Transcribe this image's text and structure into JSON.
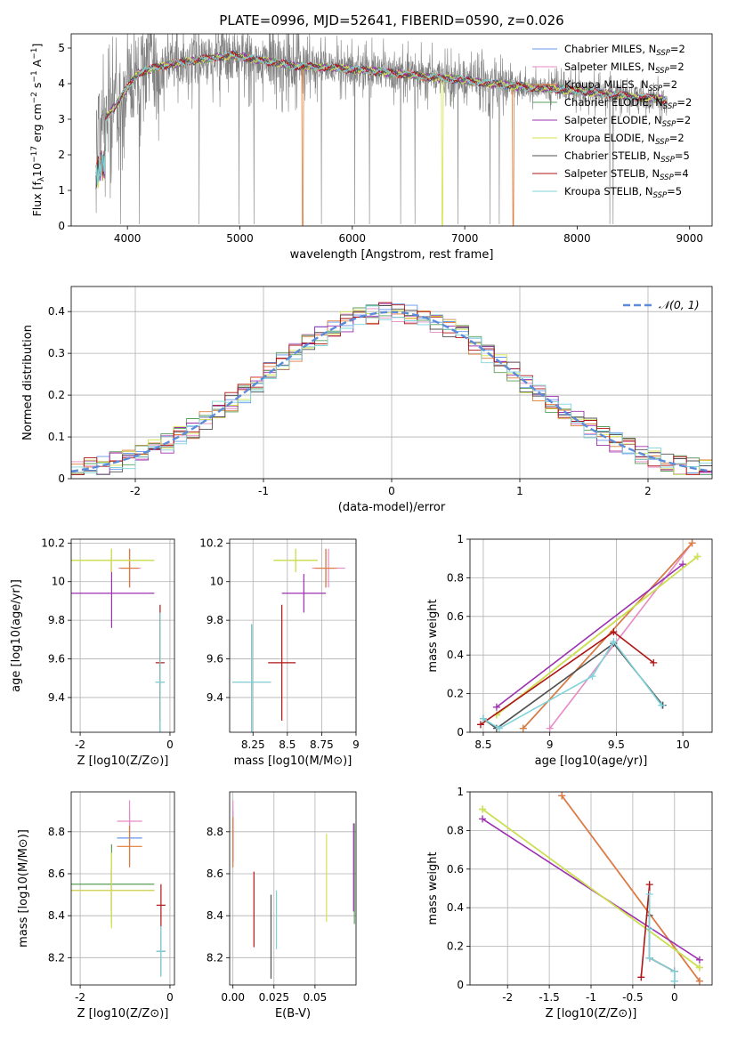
{
  "figure_title": "PLATE=0996, MJD=52641, FIBERID=0590, z=0.026",
  "palette": [
    "#6495ED",
    "#E78AC3",
    "#E07B39",
    "#5A9E5A",
    "#9B30B0",
    "#D4E34A",
    "#505050",
    "#B01515",
    "#7FD4DA"
  ],
  "chart_data": [
    {
      "id": "spectrum",
      "type": "line",
      "title": "PLATE=0996, MJD=52641, FIBERID=0590, z=0.026",
      "xlabel": "wavelength [Angstrom, rest frame]",
      "ylabel": "Flux [f_λ 10^-17 erg cm^-2 s^-1 A^-1]",
      "xlim": [
        3500,
        9200
      ],
      "ylim": [
        0,
        5.4
      ],
      "xticks": [
        4000,
        5000,
        6000,
        7000,
        8000,
        9000
      ],
      "yticks": [
        0,
        1,
        2,
        3,
        4,
        5
      ],
      "grid": false,
      "legend_position": "top-right",
      "legend": [
        {
          "label": "Chabrier MILES, N",
          "sub": "SSP",
          "tail": "=2",
          "color": "#6495ED"
        },
        {
          "label": "Salpeter MILES, N",
          "sub": "SSP",
          "tail": "=2",
          "color": "#E78AC3"
        },
        {
          "label": "Kroupa MILES, N",
          "sub": "SSP",
          "tail": "=2",
          "color": "#E07B39"
        },
        {
          "label": "Chabrier ELODIE, N",
          "sub": "SSP",
          "tail": "=2",
          "color": "#5A9E5A"
        },
        {
          "label": "Salpeter ELODIE, N",
          "sub": "SSP",
          "tail": "=2",
          "color": "#9B30B0"
        },
        {
          "label": "Kroupa ELODIE, N",
          "sub": "SSP",
          "tail": "=2",
          "color": "#D4E34A"
        },
        {
          "label": "Chabrier STELIB, N",
          "sub": "SSP",
          "tail": "=5",
          "color": "#505050"
        },
        {
          "label": "Salpeter STELIB, N",
          "sub": "SSP",
          "tail": "=4",
          "color": "#B01515"
        },
        {
          "label": "Kroupa STELIB, N",
          "sub": "SSP",
          "tail": "=5",
          "color": "#7FD4DA"
        }
      ],
      "data_color": "#808080",
      "continuum": [
        [
          3720,
          2.6
        ],
        [
          3800,
          3.0
        ],
        [
          3900,
          3.4
        ],
        [
          4000,
          3.9
        ],
        [
          4100,
          4.3
        ],
        [
          4250,
          4.45
        ],
        [
          4400,
          4.55
        ],
        [
          4600,
          4.65
        ],
        [
          4800,
          4.75
        ],
        [
          4950,
          4.8
        ],
        [
          5100,
          4.7
        ],
        [
          5300,
          4.6
        ],
        [
          5500,
          4.5
        ],
        [
          5800,
          4.45
        ],
        [
          6000,
          4.4
        ],
        [
          6200,
          4.35
        ],
        [
          6500,
          4.25
        ],
        [
          6800,
          4.15
        ],
        [
          7000,
          4.1
        ],
        [
          7200,
          4.0
        ],
        [
          7400,
          3.95
        ],
        [
          7600,
          3.9
        ],
        [
          7800,
          3.85
        ],
        [
          8000,
          3.8
        ],
        [
          8300,
          3.7
        ],
        [
          8600,
          3.6
        ],
        [
          8800,
          3.55
        ]
      ],
      "model_dips": [
        {
          "x": 5560,
          "color": "#E07B39"
        },
        {
          "x": 6800,
          "color": "#D4E34A"
        },
        {
          "x": 7430,
          "color": "#E07B39"
        }
      ]
    },
    {
      "id": "residuals",
      "type": "line",
      "xlabel": "(data-model)/error",
      "ylabel": "Normed distribution",
      "xlim": [
        -2.5,
        2.5
      ],
      "ylim": [
        0,
        0.46
      ],
      "xticks": [
        -2,
        -1,
        0,
        1,
        2
      ],
      "yticks": [
        0.0,
        0.1,
        0.2,
        0.3,
        0.4
      ],
      "grid": true,
      "legend_position": "top-right",
      "legend": [
        {
          "label": "𝒩(0, 1)",
          "style": "dashed",
          "color": "#5B8BD9"
        }
      ],
      "hist_bin_width": 0.1
    },
    {
      "id": "age-vs-Z",
      "type": "scatter",
      "xlabel": "Z [log10(Z/Z⊙)]",
      "ylabel": "age  [log10(age/yr)]",
      "xlim": [
        -2.2,
        0.1
      ],
      "ylim": [
        9.22,
        10.22
      ],
      "xticks": [
        -2,
        0
      ],
      "yticks": [
        9.4,
        9.6,
        9.8,
        10.0,
        10.2
      ],
      "grid": true,
      "points": [
        {
          "x": -0.9,
          "xerr": 0.2,
          "y": 10.07,
          "yerr": 0.1,
          "color": "#6495ED"
        },
        {
          "x": -0.9,
          "xerr": 0.25,
          "y": 10.07,
          "yerr": 0.1,
          "color": "#E78AC3"
        },
        {
          "x": -0.9,
          "xerr": 0.2,
          "y": 10.07,
          "yerr": 0.1,
          "color": "#E07B39"
        },
        {
          "x": -1.3,
          "xerr": 0.95,
          "y": 10.11,
          "yerr": 0.06,
          "color": "#5A9E5A"
        },
        {
          "x": -1.3,
          "xerr": 0.95,
          "y": 9.94,
          "yerr": 0.18,
          "color": "#9B30B0"
        },
        {
          "x": -1.3,
          "xerr": 0.95,
          "y": 10.11,
          "yerr": 0.06,
          "color": "#D4E34A"
        },
        {
          "x": -0.22,
          "xerr": 0.1,
          "y": 9.48,
          "yerr": 0.36,
          "color": "#505050"
        },
        {
          "x": -0.22,
          "xerr": 0.1,
          "y": 9.58,
          "yerr": 0.3,
          "color": "#B01515"
        },
        {
          "x": -0.22,
          "xerr": 0.1,
          "y": 9.48,
          "yerr": 0.36,
          "color": "#7FD4DA"
        }
      ]
    },
    {
      "id": "age-vs-mass",
      "type": "scatter",
      "xlabel": "mass [log10(M/M⊙)]",
      "ylabel": "",
      "xlim": [
        8.08,
        9.0
      ],
      "ylim": [
        9.22,
        10.22
      ],
      "xticks": [
        8.25,
        8.5,
        8.75,
        9.0
      ],
      "yticks": [
        9.4,
        9.6,
        9.8,
        10.0,
        10.2
      ],
      "grid": true,
      "points": [
        {
          "x": 8.78,
          "xerr": 0.06,
          "y": 10.07,
          "yerr": 0.1,
          "color": "#6495ED"
        },
        {
          "x": 8.8,
          "xerr": 0.12,
          "y": 10.07,
          "yerr": 0.1,
          "color": "#E78AC3"
        },
        {
          "x": 8.78,
          "xerr": 0.08,
          "y": 10.07,
          "yerr": 0.1,
          "color": "#E07B39"
        },
        {
          "x": 8.56,
          "xerr": 0.16,
          "y": 10.11,
          "yerr": 0.06,
          "color": "#5A9E5A"
        },
        {
          "x": 8.62,
          "xerr": 0.16,
          "y": 9.94,
          "yerr": 0.1,
          "color": "#9B30B0"
        },
        {
          "x": 8.56,
          "xerr": 0.16,
          "y": 10.11,
          "yerr": 0.06,
          "color": "#D4E34A"
        },
        {
          "x": 8.24,
          "xerr": 0.14,
          "y": 9.48,
          "yerr": 0.3,
          "color": "#505050"
        },
        {
          "x": 8.46,
          "xerr": 0.1,
          "y": 9.58,
          "yerr": 0.3,
          "color": "#B01515"
        },
        {
          "x": 8.24,
          "xerr": 0.14,
          "y": 9.48,
          "yerr": 0.3,
          "color": "#7FD4DA"
        }
      ]
    },
    {
      "id": "weight-vs-age",
      "type": "line",
      "xlabel": "age  [log10(age/yr)]",
      "ylabel": "mass weight",
      "xlim": [
        8.4,
        10.22
      ],
      "ylim": [
        0,
        1
      ],
      "xticks": [
        8.5,
        9.0,
        9.5,
        10.0
      ],
      "yticks": [
        0.0,
        0.2,
        0.4,
        0.6,
        0.8,
        1.0
      ],
      "grid": true,
      "series": [
        {
          "x": [
            8.8,
            10.07
          ],
          "y": [
            0.02,
            0.98
          ],
          "color": "#6495ED"
        },
        {
          "x": [
            9.0,
            10.07
          ],
          "y": [
            0.02,
            0.98
          ],
          "color": "#E78AC3"
        },
        {
          "x": [
            8.8,
            10.07
          ],
          "y": [
            0.02,
            0.98
          ],
          "color": "#E07B39"
        },
        {
          "x": [
            8.6,
            10.11
          ],
          "y": [
            0.09,
            0.91
          ],
          "color": "#5A9E5A"
        },
        {
          "x": [
            8.6,
            10.0
          ],
          "y": [
            0.13,
            0.87
          ],
          "color": "#9B30B0"
        },
        {
          "x": [
            8.6,
            10.11
          ],
          "y": [
            0.09,
            0.91
          ],
          "color": "#D4E34A"
        },
        {
          "x": [
            8.5,
            8.6,
            9.48,
            9.85
          ],
          "y": [
            0.07,
            0.02,
            0.46,
            0.14
          ],
          "color": "#505050"
        },
        {
          "x": [
            8.48,
            9.48,
            9.78
          ],
          "y": [
            0.04,
            0.52,
            0.36
          ],
          "color": "#B01515"
        },
        {
          "x": [
            8.5,
            8.62,
            9.32,
            9.48,
            9.84
          ],
          "y": [
            0.07,
            0.02,
            0.29,
            0.47,
            0.14
          ],
          "color": "#7FD4DA"
        }
      ]
    },
    {
      "id": "mass-vs-Z",
      "type": "scatter",
      "xlabel": "Z [log10(Z/Z⊙)]",
      "ylabel": "mass [log10(M/M⊙)]",
      "xlim": [
        -2.2,
        0.1
      ],
      "ylim": [
        8.07,
        8.99
      ],
      "xticks": [
        -2,
        0
      ],
      "yticks": [
        8.2,
        8.4,
        8.6,
        8.8
      ],
      "grid": true,
      "points": [
        {
          "x": -0.9,
          "xerr": 0.28,
          "y": 8.77,
          "yerr": 0.13,
          "color": "#6495ED"
        },
        {
          "x": -0.9,
          "xerr": 0.28,
          "y": 8.85,
          "yerr": 0.1,
          "color": "#E78AC3"
        },
        {
          "x": -0.9,
          "xerr": 0.28,
          "y": 8.73,
          "yerr": 0.1,
          "color": "#E07B39"
        },
        {
          "x": -1.3,
          "xerr": 0.95,
          "y": 8.55,
          "yerr": 0.19,
          "color": "#5A9E5A"
        },
        {
          "x": -1.3,
          "xerr": 0.95,
          "y": 8.52,
          "yerr": 0.1,
          "color": "#9B30B0"
        },
        {
          "x": -1.3,
          "xerr": 0.95,
          "y": 8.52,
          "yerr": 0.18,
          "color": "#D4E34A"
        },
        {
          "x": -0.2,
          "xerr": 0.1,
          "y": 8.23,
          "yerr": 0.12,
          "color": "#505050"
        },
        {
          "x": -0.2,
          "xerr": 0.1,
          "y": 8.45,
          "yerr": 0.1,
          "color": "#B01515"
        },
        {
          "x": -0.2,
          "xerr": 0.1,
          "y": 8.23,
          "yerr": 0.12,
          "color": "#7FD4DA"
        }
      ]
    },
    {
      "id": "mass-vs-EBV",
      "type": "scatter",
      "xlabel": "E(B-V)",
      "ylabel": "",
      "xlim": [
        -0.002,
        0.075
      ],
      "ylim": [
        8.07,
        8.99
      ],
      "xticks": [
        0.0,
        0.025,
        0.05
      ],
      "xtick_labels": [
        "0.00",
        "0.025",
        "0.05"
      ],
      "yticks": [
        8.2,
        8.4,
        8.6,
        8.8
      ],
      "grid": true,
      "points": [
        {
          "x": 0.0,
          "y": 8.78,
          "yerr": 0.12,
          "color": "#6495ED"
        },
        {
          "x": 0.0,
          "y": 8.8,
          "yerr": 0.15,
          "color": "#E78AC3"
        },
        {
          "x": 0.0,
          "y": 8.75,
          "yerr": 0.12,
          "color": "#E07B39"
        },
        {
          "x": 0.074,
          "y": 8.6,
          "yerr": 0.24,
          "color": "#5A9E5A"
        },
        {
          "x": 0.0735,
          "y": 8.63,
          "yerr": 0.21,
          "color": "#9B30B0"
        },
        {
          "x": 0.057,
          "y": 8.58,
          "yerr": 0.21,
          "color": "#D4E34A"
        },
        {
          "x": 0.0232,
          "y": 8.3,
          "yerr": 0.2,
          "color": "#505050"
        },
        {
          "x": 0.0128,
          "y": 8.43,
          "yerr": 0.18,
          "color": "#B01515"
        },
        {
          "x": 0.0265,
          "y": 8.38,
          "yerr": 0.14,
          "color": "#7FD4DA"
        }
      ]
    },
    {
      "id": "weight-vs-Z",
      "type": "line",
      "xlabel": "Z [log10(Z/Z⊙)]",
      "ylabel": "mass weight",
      "xlim": [
        -2.45,
        0.45
      ],
      "ylim": [
        0,
        1
      ],
      "xticks": [
        -2.0,
        -1.5,
        -1.0,
        -0.5,
        0.0
      ],
      "yticks": [
        0.0,
        0.2,
        0.4,
        0.6,
        0.8,
        1.0
      ],
      "grid": true,
      "series": [
        {
          "x": [
            -1.35,
            0.3
          ],
          "y": [
            0.98,
            0.02
          ],
          "color": "#6495ED"
        },
        {
          "x": [
            -1.35,
            0.3
          ],
          "y": [
            0.98,
            0.02
          ],
          "color": "#E78AC3"
        },
        {
          "x": [
            -1.35,
            0.3
          ],
          "y": [
            0.98,
            0.02
          ],
          "color": "#E07B39"
        },
        {
          "x": [
            -2.3,
            0.3
          ],
          "y": [
            0.91,
            0.09
          ],
          "color": "#5A9E5A"
        },
        {
          "x": [
            -2.3,
            0.3
          ],
          "y": [
            0.86,
            0.13
          ],
          "color": "#9B30B0"
        },
        {
          "x": [
            -2.3,
            0.3
          ],
          "y": [
            0.91,
            0.09
          ],
          "color": "#D4E34A"
        },
        {
          "x": [
            -0.3,
            -0.3,
            0.0,
            0.0
          ],
          "y": [
            0.36,
            0.14,
            0.07,
            0.02
          ],
          "color": "#505050"
        },
        {
          "x": [
            -0.4,
            -0.3,
            -0.3,
            0.0
          ],
          "y": [
            0.04,
            0.52,
            0.14,
            0.07
          ],
          "color": "#B01515"
        },
        {
          "x": [
            -0.3,
            -0.3,
            -0.3,
            0.0,
            0.0
          ],
          "y": [
            0.47,
            0.29,
            0.14,
            0.07,
            0.02
          ],
          "color": "#7FD4DA"
        }
      ]
    }
  ]
}
